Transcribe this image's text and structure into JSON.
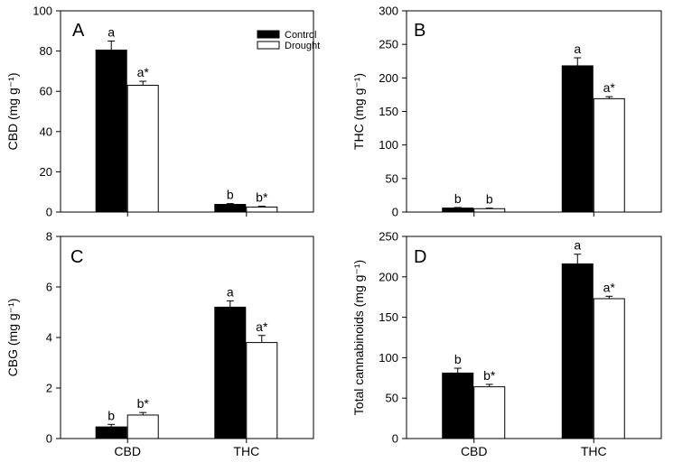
{
  "chart_data": [
    {
      "type": "bar",
      "panel": "A",
      "ylabel": "CBD (mg g⁻¹)",
      "ylim": [
        0,
        100
      ],
      "yticks": [
        0,
        20,
        40,
        60,
        80,
        100
      ],
      "categories": [
        "CBD",
        "THC"
      ],
      "show_category_labels": false,
      "series": [
        {
          "name": "Control",
          "values": [
            80.5,
            3.8
          ],
          "errors": [
            4.5,
            0.4
          ],
          "labels": [
            "a",
            "b"
          ]
        },
        {
          "name": "Drought",
          "values": [
            63.0,
            2.5
          ],
          "errors": [
            2.0,
            0.4
          ],
          "labels": [
            "a*",
            "b*"
          ]
        }
      ],
      "legend": {
        "placement": "top-right",
        "entries": [
          "Control",
          "Drought"
        ]
      }
    },
    {
      "type": "bar",
      "panel": "B",
      "ylabel": "THC (mg g⁻¹)",
      "ylim": [
        0,
        300
      ],
      "yticks": [
        0,
        50,
        100,
        150,
        200,
        250,
        300
      ],
      "categories": [
        "CBD",
        "THC"
      ],
      "show_category_labels": false,
      "series": [
        {
          "name": "Control",
          "values": [
            6,
            218
          ],
          "errors": [
            0.8,
            12
          ],
          "labels": [
            "b",
            "a"
          ]
        },
        {
          "name": "Drought",
          "values": [
            5,
            169
          ],
          "errors": [
            0.8,
            3
          ],
          "labels": [
            "b",
            "a*"
          ]
        }
      ]
    },
    {
      "type": "bar",
      "panel": "C",
      "ylabel": "CBG (mg g⁻¹)",
      "ylim": [
        0,
        8
      ],
      "yticks": [
        0,
        2,
        4,
        6,
        8
      ],
      "categories": [
        "CBD",
        "THC"
      ],
      "show_category_labels": true,
      "series": [
        {
          "name": "Control",
          "values": [
            0.46,
            5.2
          ],
          "errors": [
            0.1,
            0.25
          ],
          "labels": [
            "b",
            "a"
          ]
        },
        {
          "name": "Drought",
          "values": [
            0.93,
            3.8
          ],
          "errors": [
            0.1,
            0.28
          ],
          "labels": [
            "b*",
            "a*"
          ]
        }
      ]
    },
    {
      "type": "bar",
      "panel": "D",
      "ylabel": "Total cannabinoids (mg g⁻¹)",
      "ylim": [
        0,
        250
      ],
      "yticks": [
        0,
        50,
        100,
        150,
        200,
        250
      ],
      "categories": [
        "CBD",
        "THC"
      ],
      "show_category_labels": true,
      "series": [
        {
          "name": "Control",
          "values": [
            81,
            216
          ],
          "errors": [
            6,
            12
          ],
          "labels": [
            "b",
            "a"
          ]
        },
        {
          "name": "Drought",
          "values": [
            64,
            173
          ],
          "errors": [
            3,
            3
          ],
          "labels": [
            "b*",
            "a*"
          ]
        }
      ]
    }
  ],
  "colors": {
    "control_fill": "#000000",
    "drought_fill": "#ffffff",
    "stroke": "#000000"
  }
}
